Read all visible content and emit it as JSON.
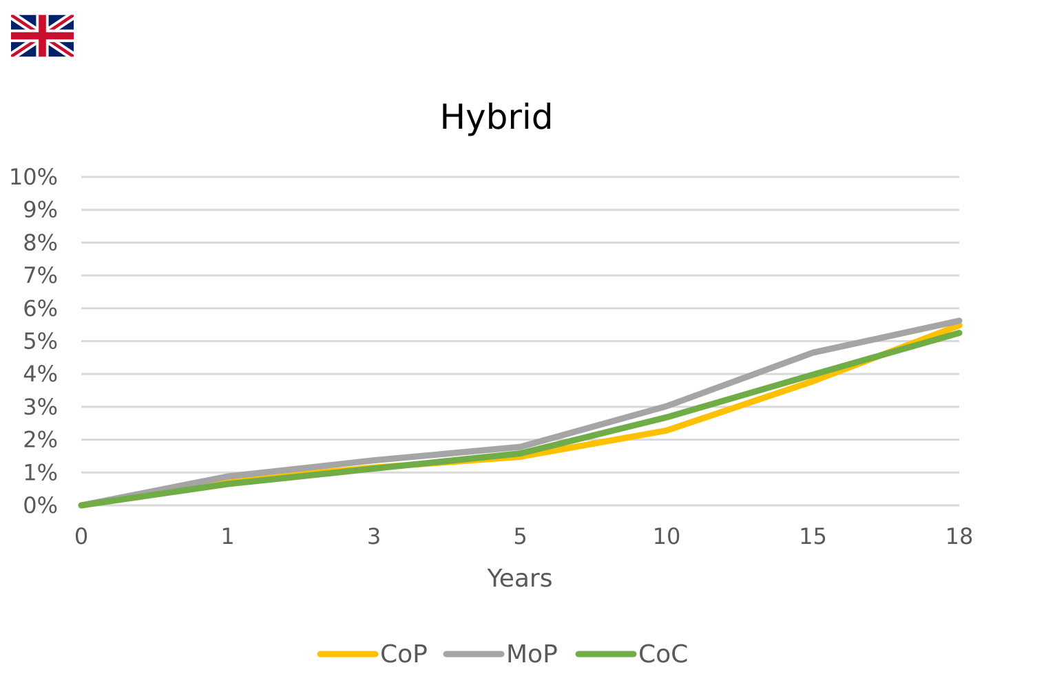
{
  "flag": {
    "icon": "uk-flag-icon"
  },
  "chart_data": {
    "type": "line",
    "title": "Hybrid",
    "xlabel": "Years",
    "ylabel": "",
    "categories": [
      "0",
      "1",
      "3",
      "5",
      "10",
      "15",
      "18"
    ],
    "ylim": [
      0,
      0.1
    ],
    "y_ticks": [
      "0%",
      "1%",
      "2%",
      "3%",
      "4%",
      "5%",
      "6%",
      "7%",
      "8%",
      "9%",
      "10%"
    ],
    "grid": true,
    "legend_position": "bottom",
    "series": [
      {
        "name": "CoP",
        "color": "#FFC000",
        "values": [
          0.0,
          0.0075,
          0.0115,
          0.0148,
          0.0228,
          0.0378,
          0.0548
        ]
      },
      {
        "name": "MoP",
        "color": "#A5A5A5",
        "values": [
          0.0,
          0.0088,
          0.0137,
          0.0178,
          0.0302,
          0.0465,
          0.0562
        ]
      },
      {
        "name": "CoC",
        "color": "#70AD47",
        "values": [
          0.0,
          0.0065,
          0.0112,
          0.0158,
          0.0268,
          0.0398,
          0.0525
        ]
      }
    ]
  }
}
